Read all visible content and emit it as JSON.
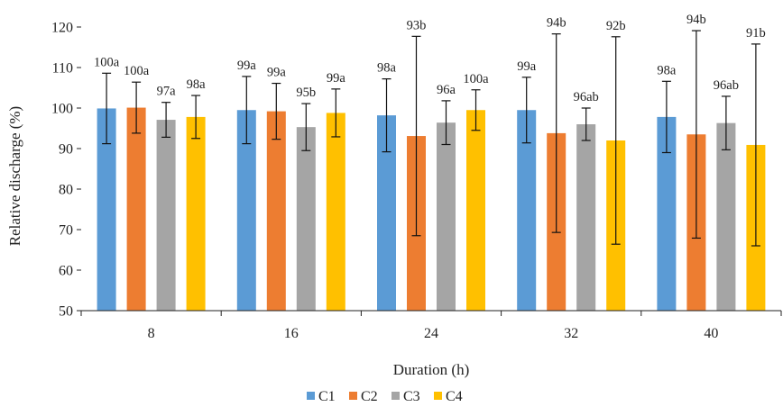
{
  "chart_data": {
    "type": "bar",
    "title": "",
    "xlabel": "Duration (h)",
    "ylabel": "Relative discharge (%)",
    "ylim": [
      50,
      120
    ],
    "yticks": [
      50,
      60,
      70,
      80,
      90,
      100,
      110,
      120
    ],
    "grid": false,
    "legend_position": "bottom",
    "categories": [
      "8",
      "16",
      "24",
      "32",
      "40"
    ],
    "series": [
      {
        "name": "C1",
        "color": "#5B9BD5",
        "values": [
          99.9,
          99.5,
          98.2,
          99.5,
          97.8
        ],
        "error": [
          8.7,
          8.3,
          9.0,
          8.1,
          8.8
        ],
        "labels": [
          "100a",
          "99a",
          "98a",
          "99a",
          "98a"
        ]
      },
      {
        "name": "C2",
        "color": "#ED7D31",
        "values": [
          100.1,
          99.2,
          93.1,
          93.8,
          93.5
        ],
        "error": [
          6.3,
          6.9,
          24.6,
          24.5,
          25.6
        ],
        "labels": [
          "100a",
          "99a",
          "93b",
          "94b",
          "94b"
        ]
      },
      {
        "name": "C3",
        "color": "#A5A5A5",
        "values": [
          97.1,
          95.3,
          96.4,
          96.0,
          96.3
        ],
        "error": [
          4.3,
          5.8,
          5.4,
          4.0,
          6.6
        ],
        "labels": [
          "97a",
          "95b",
          "96a",
          "96ab",
          "96ab"
        ]
      },
      {
        "name": "C4",
        "color": "#FFC000",
        "values": [
          97.8,
          98.8,
          99.5,
          92.0,
          90.9
        ],
        "error": [
          5.3,
          5.9,
          5.0,
          25.6,
          24.9
        ],
        "labels": [
          "98a",
          "99a",
          "100a",
          "92b",
          "91b"
        ]
      }
    ]
  }
}
